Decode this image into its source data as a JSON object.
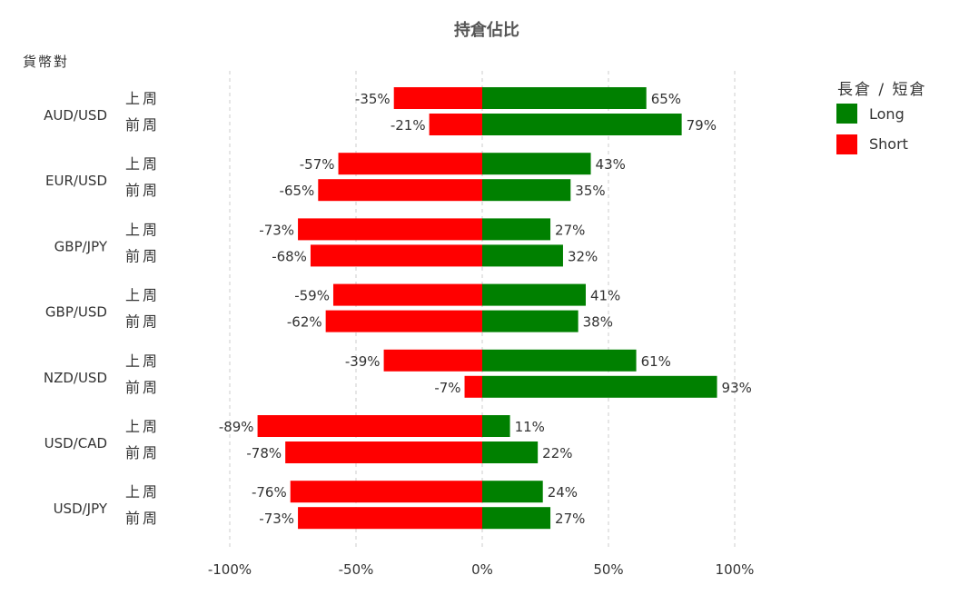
{
  "chart_data": {
    "type": "bar",
    "orientation": "horizontal-diverging",
    "title": "持倉佔比",
    "ylabel": "貨幣對",
    "xlim": [
      -100,
      100
    ],
    "x_ticks": [
      "-100%",
      "-50%",
      "0%",
      "50%",
      "100%"
    ],
    "x_tick_values": [
      -100,
      -50,
      0,
      50,
      100
    ],
    "grid": "vertical-dashed",
    "legend": {
      "title": "長倉 / 短倉",
      "placement": "top-right",
      "entries": [
        {
          "label": "Long",
          "color": "#008000"
        },
        {
          "label": "Short",
          "color": "#ff0000"
        }
      ]
    },
    "week_labels": [
      "上周",
      "前周"
    ],
    "categories": [
      "AUD/USD",
      "EUR/USD",
      "GBP/JPY",
      "GBP/USD",
      "NZD/USD",
      "USD/CAD",
      "USD/JPY"
    ],
    "series": [
      {
        "name": "Long",
        "color": "#008000",
        "values": [
          [
            65,
            79
          ],
          [
            43,
            35
          ],
          [
            27,
            32
          ],
          [
            41,
            38
          ],
          [
            61,
            93
          ],
          [
            11,
            22
          ],
          [
            24,
            27
          ]
        ]
      },
      {
        "name": "Short",
        "color": "#ff0000",
        "values": [
          [
            -35,
            -21
          ],
          [
            -57,
            -65
          ],
          [
            -73,
            -68
          ],
          [
            -59,
            -62
          ],
          [
            -39,
            -7
          ],
          [
            -89,
            -78
          ],
          [
            -76,
            -73
          ]
        ]
      }
    ]
  }
}
